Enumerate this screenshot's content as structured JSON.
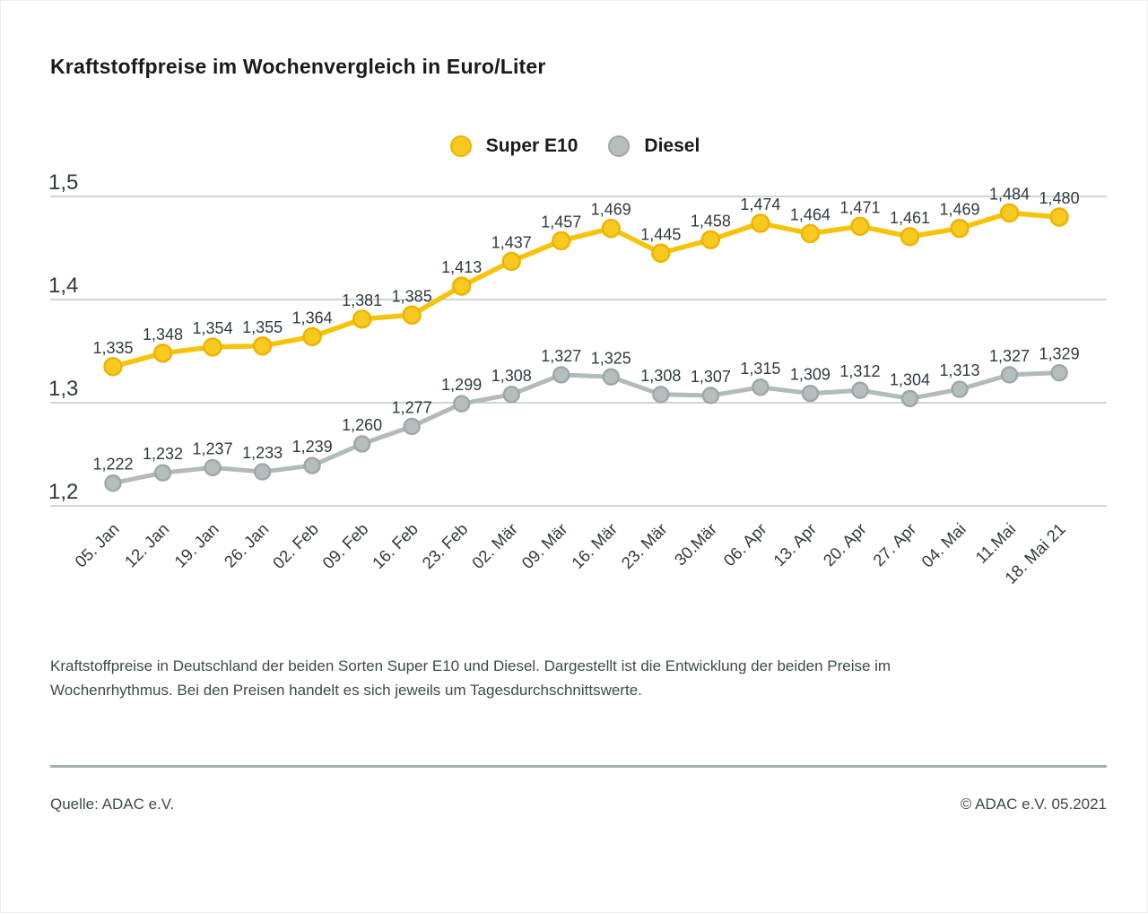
{
  "title": "Kraftstoffpreise im Wochenvergleich in Euro/Liter",
  "legend": {
    "items": [
      {
        "label": "Super E10"
      },
      {
        "label": "Diesel"
      }
    ]
  },
  "chart_data": {
    "type": "line",
    "x": [
      "05. Jan",
      "12. Jan",
      "19. Jan",
      "26. Jan",
      "02. Feb",
      "09. Feb",
      "16. Feb",
      "23. Feb",
      "02. Mär",
      "09. Mär",
      "16. Mär",
      "23. Mär",
      "30.Mär",
      "06. Apr",
      "13. Apr",
      "20. Apr",
      "27. Apr",
      "04. Mai",
      "11.Mai",
      "18. Mai 21"
    ],
    "series": [
      {
        "name": "Super E10",
        "values": [
          1.335,
          1.348,
          1.354,
          1.355,
          1.364,
          1.381,
          1.385,
          1.413,
          1.437,
          1.457,
          1.469,
          1.445,
          1.458,
          1.474,
          1.464,
          1.471,
          1.461,
          1.469,
          1.484,
          1.48
        ],
        "line_color": "#f5c30a",
        "dot_color": "#f8c91f",
        "dot_edge": "#edb300"
      },
      {
        "name": "Diesel",
        "values": [
          1.222,
          1.232,
          1.237,
          1.233,
          1.239,
          1.26,
          1.277,
          1.299,
          1.308,
          1.327,
          1.325,
          1.308,
          1.307,
          1.315,
          1.309,
          1.312,
          1.304,
          1.313,
          1.327,
          1.329
        ],
        "line_color": "#b3baba",
        "dot_color": "#b6bdbd",
        "dot_edge": "#9da7a7"
      }
    ],
    "ylim": [
      1.2,
      1.5
    ],
    "yticks": [
      1.2,
      1.3,
      1.4,
      1.5
    ],
    "decimal_separator": ",",
    "grid": true,
    "legend_position": "top-center",
    "value_labels": true
  },
  "colors": {
    "grid": "#c8cece",
    "axis_label": "#30393d",
    "value_label": "#2e3a42",
    "divider": "#a2b1af",
    "text": "#3d4a4c"
  },
  "caption": {
    "line1": "Kraftstoffpreise in Deutschland der beiden Sorten Super E10 und Diesel. Dargestellt ist die Entwicklung der beiden Preise im",
    "line2": "Wochenrhythmus. Bei den Preisen handelt es sich jeweils um Tagesdurchschnittswerte."
  },
  "footer": {
    "source": "Quelle: ADAC e.V.",
    "copyright": "© ADAC e.V. 05.2021"
  }
}
